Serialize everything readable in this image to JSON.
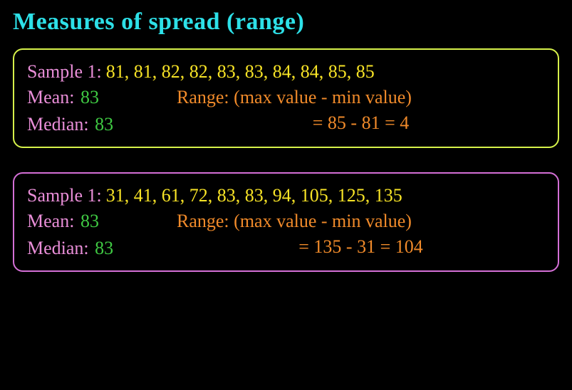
{
  "title": "Measures of spread (range)",
  "colors": {
    "title": "#2de0e8",
    "panel1_border": "#d6f24a",
    "panel2_border": "#d46fd6",
    "label_pink": "#e98ed8",
    "data_yellow": "#f7e326",
    "value_green": "#3fc943",
    "range_orange": "#f08a2a",
    "background": "#000000"
  },
  "panel1": {
    "sample_label": "Sample 1",
    "data": "81, 81, 82, 82, 83, 83, 84, 84, 85, 85",
    "mean_label": "Mean",
    "mean_value": "83",
    "median_label": "Median",
    "median_value": "83",
    "range_label": "Range:",
    "range_formula": "(max value - min value)",
    "range_calc": "= 85 - 81 = 4"
  },
  "panel2": {
    "sample_label": "Sample 1",
    "data": "31, 41, 61, 72, 83, 83, 94, 105, 125, 135",
    "mean_label": "Mean",
    "mean_value": "83",
    "median_label": "Median",
    "median_value": "83",
    "range_label": "Range:",
    "range_formula": "(max value - min value)",
    "range_calc": "= 135 - 31 = 104"
  },
  "style": {
    "title_fontsize": 34,
    "body_fontsize": 26,
    "panel_radius": 14,
    "panel_border_width": 2
  }
}
